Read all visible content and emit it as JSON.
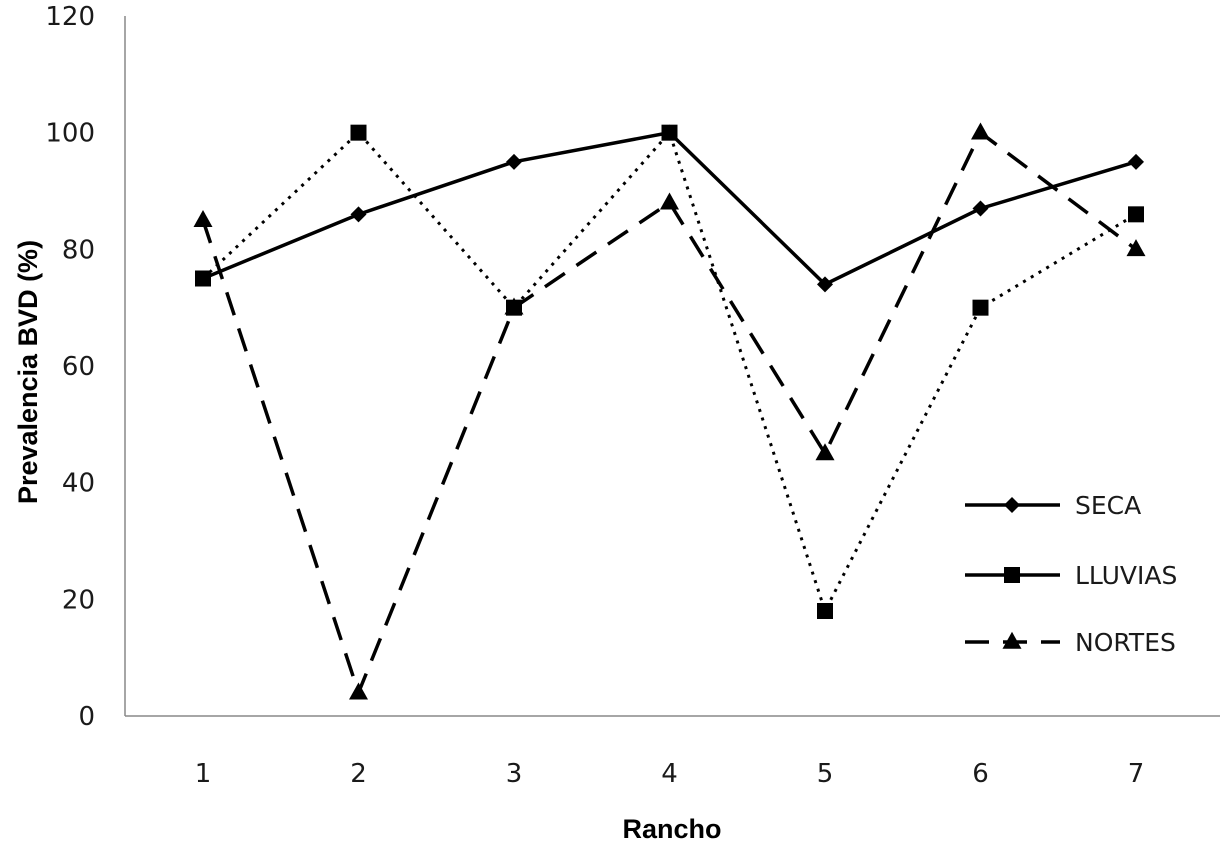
{
  "chart_data": {
    "type": "line",
    "title": "",
    "xlabel": "Rancho",
    "ylabel": "Prevalencia BVD (%)",
    "categories": [
      "1",
      "2",
      "3",
      "4",
      "5",
      "6",
      "7"
    ],
    "ylim": [
      0,
      120
    ],
    "yticks": [
      "0",
      "20",
      "40",
      "60",
      "80",
      "100",
      "120"
    ],
    "grid": false,
    "legend_position": "right",
    "series": [
      {
        "name": "SECA",
        "values": [
          75,
          86,
          95,
          100,
          74,
          87,
          95
        ],
        "marker": "diamond",
        "line_style": "solid",
        "color": "#000000"
      },
      {
        "name": "LLUVIAS",
        "values": [
          75,
          100,
          70,
          100,
          18,
          70,
          86
        ],
        "marker": "square",
        "line_style": "dotted",
        "color": "#000000"
      },
      {
        "name": "NORTES",
        "values": [
          85,
          4,
          70,
          88,
          45,
          100,
          80
        ],
        "marker": "triangle",
        "line_style": "dashed",
        "color": "#000000"
      }
    ]
  }
}
